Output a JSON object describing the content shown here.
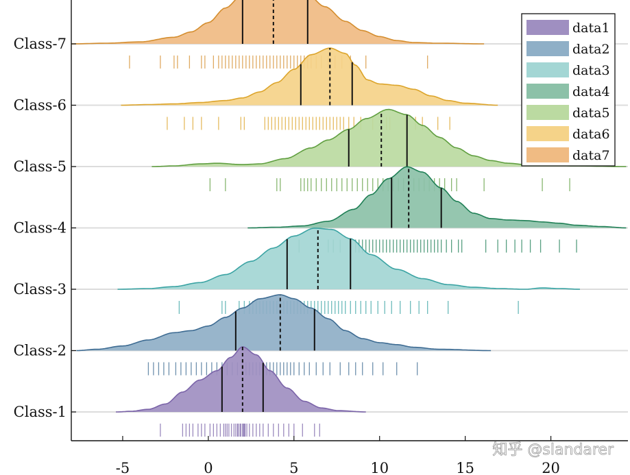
{
  "chart_data": {
    "type": "ridgeline",
    "title": "",
    "xlabel": "",
    "ylabel": "",
    "xlim": [
      -8,
      24.5
    ],
    "xticks": [
      -5,
      0,
      5,
      10,
      15,
      20
    ],
    "xtick_labels": [
      "-5",
      "0",
      "5",
      "10",
      "15",
      "20"
    ],
    "grid": "horizontal baselines",
    "legend_position": "top-right",
    "series": [
      {
        "name": "data1",
        "label": "Class-1",
        "color": "#9f8fc1",
        "edge": "#7a63a8",
        "range": [
          -5.4,
          9.2
        ],
        "q1": 0.8,
        "median": 2.0,
        "q3": 3.2,
        "density": [
          [
            -5.4,
            0.0
          ],
          [
            -4.5,
            0.01
          ],
          [
            -3.5,
            0.04
          ],
          [
            -2.5,
            0.12
          ],
          [
            -1.5,
            0.3
          ],
          [
            -0.5,
            0.48
          ],
          [
            0.5,
            0.62
          ],
          [
            1.3,
            0.82
          ],
          [
            2.0,
            0.98
          ],
          [
            2.8,
            0.86
          ],
          [
            3.6,
            0.62
          ],
          [
            4.6,
            0.36
          ],
          [
            5.6,
            0.16
          ],
          [
            6.6,
            0.06
          ],
          [
            7.6,
            0.02
          ],
          [
            9.2,
            0.0
          ]
        ],
        "rug": [
          -2.8,
          -1.5,
          -1.3,
          -1.1,
          -0.9,
          -0.6,
          -0.4,
          -0.2,
          0.1,
          0.3,
          0.5,
          0.7,
          0.9,
          1.0,
          1.1,
          1.2,
          1.35,
          1.5,
          1.6,
          1.7,
          1.75,
          1.85,
          1.9,
          2.0,
          2.05,
          2.1,
          2.15,
          2.25,
          2.4,
          2.6,
          2.8,
          3.0,
          3.2,
          3.5,
          3.8,
          4.1,
          4.4,
          4.7,
          5.0,
          5.5,
          6.2,
          6.5
        ]
      },
      {
        "name": "data2",
        "label": "Class-2",
        "color": "#8fafc7",
        "edge": "#3d6b92",
        "range": [
          -7.7,
          16.5
        ],
        "q1": 1.6,
        "median": 4.2,
        "q3": 6.2,
        "density": [
          [
            -7.7,
            0.0
          ],
          [
            -6.5,
            0.02
          ],
          [
            -5,
            0.07
          ],
          [
            -3.5,
            0.16
          ],
          [
            -2,
            0.27
          ],
          [
            -1,
            0.3
          ],
          [
            0,
            0.37
          ],
          [
            1,
            0.5
          ],
          [
            2,
            0.64
          ],
          [
            3,
            0.78
          ],
          [
            4.2,
            0.84
          ],
          [
            5,
            0.78
          ],
          [
            6,
            0.64
          ],
          [
            7,
            0.48
          ],
          [
            8,
            0.3
          ],
          [
            9,
            0.18
          ],
          [
            10,
            0.12
          ],
          [
            11,
            0.09
          ],
          [
            12,
            0.05
          ],
          [
            13.5,
            0.02
          ],
          [
            16.5,
            0.0
          ]
        ],
        "rug": [
          -3.5,
          -3.2,
          -2.9,
          -2.6,
          -2.3,
          -1.9,
          -1.6,
          -1.3,
          -1.0,
          -0.7,
          -0.4,
          -0.1,
          0.2,
          0.5,
          0.8,
          1.1,
          1.4,
          1.7,
          2.0,
          2.2,
          2.4,
          2.6,
          2.8,
          3.0,
          3.2,
          3.4,
          3.6,
          3.8,
          4.0,
          4.2,
          4.4,
          4.6,
          4.8,
          5.0,
          5.3,
          5.6,
          5.9,
          6.3,
          6.7,
          7.1,
          7.7,
          8.2,
          8.6,
          9.0,
          9.6,
          10.2,
          11.0,
          12.2
        ]
      },
      {
        "name": "data3",
        "label": "Class-3",
        "color": "#a3d6d4",
        "edge": "#3aa3a3",
        "range": [
          -5.3,
          21.7
        ],
        "q1": 4.6,
        "median": 6.4,
        "q3": 8.3,
        "density": [
          [
            -5.3,
            0.0
          ],
          [
            -3.5,
            0.01
          ],
          [
            -2,
            0.04
          ],
          [
            -0.5,
            0.1
          ],
          [
            1,
            0.22
          ],
          [
            2.5,
            0.42
          ],
          [
            3.8,
            0.62
          ],
          [
            5,
            0.8
          ],
          [
            6.2,
            0.92
          ],
          [
            7.2,
            0.9
          ],
          [
            8.3,
            0.76
          ],
          [
            9.5,
            0.52
          ],
          [
            11,
            0.3
          ],
          [
            12.5,
            0.16
          ],
          [
            14,
            0.07
          ],
          [
            15.5,
            0.03
          ],
          [
            17,
            0.01
          ],
          [
            18.5,
            0.0
          ],
          [
            19.5,
            0.02
          ],
          [
            20.5,
            0.01
          ],
          [
            21.7,
            0.0
          ]
        ],
        "rug": [
          -1.7,
          0.8,
          1.0,
          1.8,
          2.1,
          2.4,
          2.6,
          2.8,
          3.0,
          3.2,
          3.4,
          3.6,
          3.8,
          4.0,
          4.2,
          4.4,
          4.6,
          4.8,
          5.0,
          5.2,
          5.4,
          5.6,
          5.8,
          6.0,
          6.2,
          6.4,
          6.6,
          6.8,
          7.0,
          7.2,
          7.4,
          7.6,
          7.8,
          8.0,
          8.3,
          8.6,
          8.9,
          9.2,
          9.5,
          9.9,
          10.3,
          10.7,
          11.2,
          11.8,
          12.3,
          12.8,
          14.0,
          18.1
        ]
      },
      {
        "name": "data4",
        "label": "Class-4",
        "color": "#8cc1a8",
        "edge": "#1f7f55",
        "range": [
          2.3,
          24.4
        ],
        "q1": 10.7,
        "median": 11.7,
        "q3": 13.6,
        "density": [
          [
            2.3,
            0.0
          ],
          [
            4,
            0.01
          ],
          [
            5.5,
            0.03
          ],
          [
            7,
            0.1
          ],
          [
            8.5,
            0.28
          ],
          [
            9.5,
            0.5
          ],
          [
            10.5,
            0.74
          ],
          [
            11.6,
            0.92
          ],
          [
            12.5,
            0.84
          ],
          [
            13.6,
            0.6
          ],
          [
            14.5,
            0.4
          ],
          [
            15.5,
            0.22
          ],
          [
            16.5,
            0.14
          ],
          [
            17.5,
            0.12
          ],
          [
            18.5,
            0.11
          ],
          [
            19.5,
            0.09
          ],
          [
            20.5,
            0.07
          ],
          [
            21.5,
            0.04
          ],
          [
            23,
            0.02
          ],
          [
            24.4,
            0.0
          ]
        ],
        "rug": [
          5.3,
          7.0,
          7.3,
          7.7,
          8.6,
          8.8,
          9.0,
          9.2,
          9.4,
          9.6,
          9.8,
          10.0,
          10.2,
          10.4,
          10.6,
          10.8,
          11.0,
          11.2,
          11.4,
          11.6,
          11.8,
          12.0,
          12.2,
          12.4,
          12.6,
          12.8,
          13.0,
          13.2,
          13.4,
          13.6,
          13.9,
          14.2,
          14.6,
          14.8,
          16.2,
          16.9,
          17.4,
          17.9,
          18.3,
          18.8,
          19.4,
          20.5,
          21.5
        ]
      },
      {
        "name": "data5",
        "label": "Class-5",
        "color": "#bbdaa1",
        "edge": "#5f9e3f",
        "range": [
          -3.3,
          24.4
        ],
        "q1": 8.2,
        "median": 10.1,
        "q3": 11.6,
        "density": [
          [
            -3.3,
            0.0
          ],
          [
            -2,
            0.01
          ],
          [
            -0.5,
            0.04
          ],
          [
            0.5,
            0.05
          ],
          [
            2,
            0.03
          ],
          [
            3,
            0.04
          ],
          [
            4.5,
            0.12
          ],
          [
            6,
            0.28
          ],
          [
            7,
            0.4
          ],
          [
            8.2,
            0.56
          ],
          [
            9.2,
            0.72
          ],
          [
            10.5,
            0.86
          ],
          [
            11.6,
            0.78
          ],
          [
            12.5,
            0.62
          ],
          [
            13.5,
            0.44
          ],
          [
            14.5,
            0.28
          ],
          [
            15.5,
            0.16
          ],
          [
            16.5,
            0.09
          ],
          [
            17.5,
            0.05
          ],
          [
            18.5,
            0.03
          ],
          [
            20,
            0.02
          ],
          [
            21.5,
            0.01
          ],
          [
            24.4,
            0.0
          ]
        ],
        "rug": [
          0.1,
          1.0,
          4.0,
          4.2,
          5.4,
          5.6,
          5.8,
          6.0,
          6.3,
          6.6,
          6.9,
          7.2,
          7.5,
          7.8,
          8.1,
          8.4,
          8.7,
          9.0,
          9.3,
          9.6,
          9.9,
          10.2,
          10.5,
          10.8,
          11.1,
          11.4,
          11.7,
          12.0,
          12.3,
          12.6,
          12.9,
          13.2,
          13.5,
          13.8,
          14.2,
          14.5,
          16.1,
          19.5,
          21.1
        ]
      },
      {
        "name": "data6",
        "label": "Class-6",
        "color": "#f5d389",
        "edge": "#dca42a",
        "range": [
          -5.1,
          16.9
        ],
        "q1": 5.4,
        "median": 7.1,
        "q3": 8.4,
        "density": [
          [
            -5.1,
            0.0
          ],
          [
            -3.5,
            0.01
          ],
          [
            -2,
            0.02
          ],
          [
            -0.5,
            0.04
          ],
          [
            1,
            0.07
          ],
          [
            2,
            0.11
          ],
          [
            3,
            0.2
          ],
          [
            4,
            0.34
          ],
          [
            5,
            0.54
          ],
          [
            6,
            0.76
          ],
          [
            7.1,
            0.86
          ],
          [
            8,
            0.78
          ],
          [
            8.6,
            0.6
          ],
          [
            9.3,
            0.38
          ],
          [
            10,
            0.32
          ],
          [
            11,
            0.3
          ],
          [
            12,
            0.24
          ],
          [
            13,
            0.14
          ],
          [
            14,
            0.07
          ],
          [
            15,
            0.03
          ],
          [
            16.9,
            0.0
          ]
        ],
        "rug": [
          -2.4,
          -1.4,
          -0.9,
          -0.4,
          0.6,
          1.9,
          2.1,
          3.3,
          3.5,
          3.7,
          3.9,
          4.1,
          4.3,
          4.5,
          4.7,
          4.9,
          5.1,
          5.3,
          5.5,
          5.7,
          5.9,
          6.1,
          6.3,
          6.5,
          6.7,
          6.9,
          7.1,
          7.3,
          7.5,
          7.7,
          7.9,
          8.2,
          8.5,
          8.9,
          9.6,
          10.4,
          10.6,
          11.5,
          12.1,
          12.5,
          13.4,
          14.1
        ]
      },
      {
        "name": "data7",
        "label": "Class-7",
        "color": "#f0bb83",
        "edge": "#d48d2e",
        "range": [
          -8.0,
          16.1
        ],
        "q1": 2.0,
        "median": 3.8,
        "q3": 5.8,
        "density": [
          [
            -8,
            0.0
          ],
          [
            -6,
            0.01
          ],
          [
            -4,
            0.03
          ],
          [
            -2,
            0.1
          ],
          [
            -1,
            0.18
          ],
          [
            0,
            0.32
          ],
          [
            1,
            0.54
          ],
          [
            2,
            0.74
          ],
          [
            3,
            0.86
          ],
          [
            4,
            0.88
          ],
          [
            5,
            0.84
          ],
          [
            5.8,
            0.74
          ],
          [
            6.8,
            0.56
          ],
          [
            8,
            0.34
          ],
          [
            9,
            0.2
          ],
          [
            10,
            0.11
          ],
          [
            11,
            0.05
          ],
          [
            12,
            0.02
          ],
          [
            13.5,
            0.01
          ],
          [
            16.1,
            0.0
          ]
        ],
        "rug": [
          -4.6,
          -2.8,
          -2.0,
          -1.8,
          -1.1,
          -0.4,
          -0.2,
          0.3,
          0.6,
          0.8,
          1.0,
          1.2,
          1.4,
          1.6,
          1.8,
          2.0,
          2.2,
          2.4,
          2.6,
          2.8,
          3.0,
          3.2,
          3.4,
          3.6,
          3.8,
          4.0,
          4.2,
          4.4,
          4.6,
          4.8,
          5.0,
          5.2,
          5.4,
          5.6,
          5.8,
          6.0,
          6.3,
          6.6,
          7.0,
          7.4,
          7.8,
          8.3,
          9.2,
          12.8
        ]
      }
    ]
  },
  "watermark": "知乎 @slandarer"
}
